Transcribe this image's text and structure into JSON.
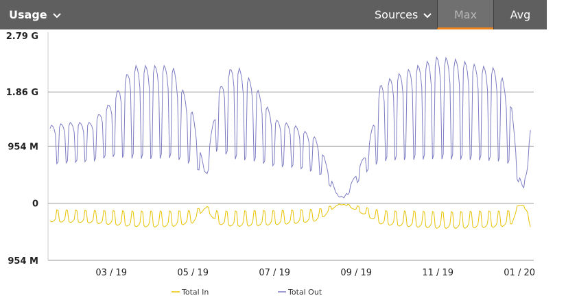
{
  "toolbar": {
    "title": "Usage",
    "sources_label": "Sources",
    "max_label": "Max",
    "avg_label": "Avg",
    "active_tab": "Max",
    "accent_color": "#e8831f",
    "bar_color": "#5f5f5f"
  },
  "chart_data": {
    "type": "line",
    "ylim": [
      -954,
      2790
    ],
    "y_ticks": [
      {
        "value": 2790,
        "label": "2.79 G"
      },
      {
        "value": 1860,
        "label": "1.86 G"
      },
      {
        "value": 954,
        "label": "954 M"
      },
      {
        "value": 0,
        "label": "0"
      },
      {
        "value": -954,
        "label": "954 M"
      }
    ],
    "y_unit_note": "Total In is plotted below zero (magnitude shown as positive label)",
    "x_ticks": [
      "03 / 19",
      "05 / 19",
      "07 / 19",
      "09 / 19",
      "11 / 19",
      "01 / 20"
    ],
    "x_range_months": [
      0.45,
      12.35
    ],
    "x_tick_positions_months": [
      2,
      4,
      6,
      8,
      10,
      12
    ],
    "grid": "horizontal",
    "legend_position": "bottom",
    "series": [
      {
        "name": "Total Out",
        "color": "#7b7bc2",
        "x_months": [
          0.5,
          1.0,
          1.5,
          2.0,
          2.5,
          3.0,
          3.5,
          4.0,
          4.3,
          4.6,
          5.0,
          5.5,
          6.0,
          6.5,
          7.0,
          7.2,
          7.5,
          7.7,
          8.0,
          8.3,
          8.6,
          9.0,
          9.5,
          10.0,
          10.5,
          11.0,
          11.5,
          11.8,
          12.0,
          12.1,
          12.3
        ],
        "weekday_mb": [
          1300,
          1350,
          1350,
          1700,
          2300,
          2300,
          2300,
          1500,
          480,
          1850,
          2350,
          2000,
          1400,
          1300,
          1100,
          800,
          180,
          90,
          500,
          950,
          2000,
          2150,
          2300,
          2450,
          2400,
          2300,
          2250,
          1650,
          450,
          230,
          1400
        ],
        "weekend_mb": [
          650,
          680,
          700,
          780,
          750,
          740,
          760,
          650,
          420,
          900,
          740,
          700,
          620,
          600,
          520,
          450,
          140,
          60,
          320,
          560,
          700,
          720,
          730,
          740,
          730,
          720,
          700,
          650,
          300,
          210,
          1000
        ]
      },
      {
        "name": "Total In",
        "color": "#e8c200",
        "x_months": [
          0.5,
          1.0,
          1.5,
          2.0,
          2.5,
          3.0,
          3.5,
          4.0,
          4.3,
          4.6,
          5.0,
          5.5,
          6.0,
          6.5,
          7.0,
          7.2,
          7.5,
          7.7,
          8.0,
          8.3,
          8.6,
          9.0,
          9.5,
          10.0,
          10.5,
          11.0,
          11.5,
          11.8,
          12.0,
          12.1,
          12.3
        ],
        "weekday_mb": [
          -310,
          -320,
          -330,
          -360,
          -390,
          -400,
          -390,
          -330,
          -80,
          -350,
          -390,
          -380,
          -360,
          -340,
          -300,
          -230,
          -50,
          -20,
          -120,
          -230,
          -350,
          -380,
          -400,
          -420,
          -420,
          -410,
          -400,
          -360,
          -40,
          -30,
          -460
        ],
        "weekend_mb": [
          -110,
          -110,
          -120,
          -120,
          -130,
          -130,
          -130,
          -120,
          -40,
          -130,
          -130,
          -120,
          -120,
          -110,
          -100,
          -80,
          -20,
          -10,
          -40,
          -80,
          -120,
          -130,
          -130,
          -140,
          -140,
          -130,
          -130,
          -120,
          -20,
          -15,
          -300
        ]
      }
    ]
  }
}
